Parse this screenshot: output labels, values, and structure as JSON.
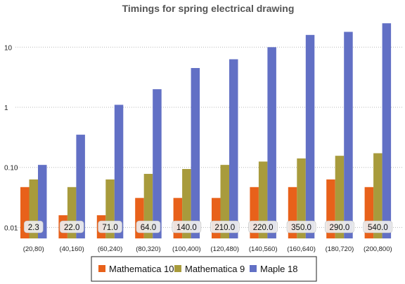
{
  "chart_data": {
    "type": "bar",
    "title": "Timings for spring electrical drawing",
    "xlabel": "",
    "ylabel": "",
    "yscale": "log",
    "ylim": [
      0.006,
      30
    ],
    "yticks": [
      {
        "value": 0.01,
        "label": "0.01"
      },
      {
        "value": 0.1,
        "label": "0.10"
      },
      {
        "value": 1,
        "label": "1"
      },
      {
        "value": 10,
        "label": "10"
      }
    ],
    "grid": "horizontal dotted",
    "legend_position": "bottom",
    "categories": [
      "(20,80)",
      "(40,160)",
      "(60,240)",
      "(80,320)",
      "(100,400)",
      "(120,480)",
      "(140,560)",
      "(160,640)",
      "(180,720)",
      "(200,800)"
    ],
    "series": [
      {
        "name": "Mathematica 10",
        "color": "#e8611a",
        "values": [
          0.047,
          0.016,
          0.016,
          0.031,
          0.031,
          0.031,
          0.047,
          0.047,
          0.063,
          0.047
        ]
      },
      {
        "name": "Mathematica 9",
        "color": "#a89b3c",
        "values": [
          0.063,
          0.047,
          0.063,
          0.078,
          0.094,
          0.11,
          0.125,
          0.141,
          0.156,
          0.172
        ]
      },
      {
        "name": "Maple 18",
        "color": "#6270c5",
        "values": [
          0.11,
          0.35,
          1.1,
          2.0,
          4.5,
          6.3,
          10.0,
          16.0,
          18.0,
          25.0
        ]
      }
    ],
    "data_labels": [
      "2.3",
      "22.0",
      "71.0",
      "64.0",
      "140.0",
      "210.0",
      "220.0",
      "350.0",
      "290.0",
      "540.0"
    ]
  }
}
